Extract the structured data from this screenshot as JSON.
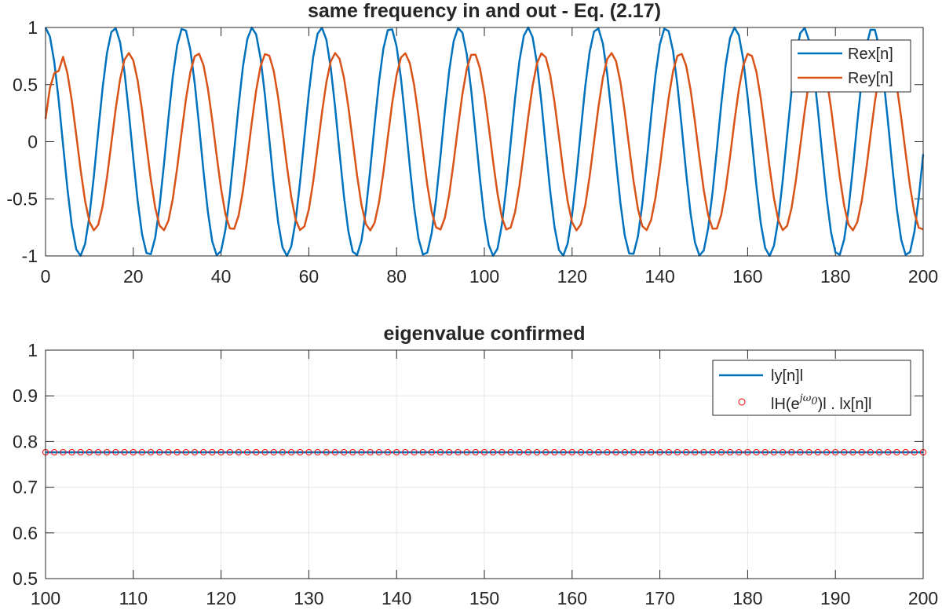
{
  "chart_data": [
    {
      "type": "line",
      "title": "same frequency in and out - Eq. (2.17)",
      "xlabel": "",
      "ylabel": "",
      "xlim": [
        0,
        200
      ],
      "ylim": [
        -1,
        1
      ],
      "xticks": [
        "0",
        "20",
        "40",
        "60",
        "80",
        "100",
        "120",
        "140",
        "160",
        "180",
        "200"
      ],
      "yticks": [
        "-1",
        "-0.5",
        "0",
        "0.5",
        "1"
      ],
      "grid": false,
      "legend_position": "top-right",
      "sampling": {
        "n_start": 0,
        "n_end": 200,
        "step": 1
      },
      "series": [
        {
          "name": "Rex[n]",
          "color": "#0072BD",
          "formula": "cos(0.4 n)",
          "amplitude": 1,
          "omega": 0.4,
          "phase": 0
        },
        {
          "name": "Rey[n]",
          "color": "#D95319",
          "formula": "0.7765 cos(0.4 n - 1.305), first samples transient",
          "amplitude": 0.7765,
          "omega": 0.4,
          "phase": -1.305,
          "start_values": [
            0.2,
            0.47,
            0.6,
            0.62
          ]
        }
      ]
    },
    {
      "type": "line",
      "title": "eigenvalue confirmed",
      "xlabel": "",
      "ylabel": "",
      "xlim": [
        100,
        200
      ],
      "ylim": [
        0.5,
        1
      ],
      "xticks": [
        "100",
        "110",
        "120",
        "130",
        "140",
        "150",
        "160",
        "170",
        "180",
        "190",
        "200"
      ],
      "yticks": [
        "0.5",
        "0.6",
        "0.7",
        "0.8",
        "0.9",
        "1"
      ],
      "grid": true,
      "legend_position": "top-right",
      "series": [
        {
          "name": "|y[n]|",
          "label": "ly[n]l",
          "color": "#0072BD",
          "style": "line",
          "x_range": [
            100,
            200
          ],
          "value": 0.7765
        },
        {
          "name": "|H(e^{jω0})| . |x[n]|",
          "label_main": "lH(e",
          "label_sup": "jω",
          "label_sub": "0",
          "label_tail": ")l  .  lx[n]l",
          "color": "#FF0000",
          "style": "circle-markers",
          "x_range": [
            100,
            200
          ],
          "x_step": 1,
          "value": 0.7765
        }
      ]
    }
  ]
}
